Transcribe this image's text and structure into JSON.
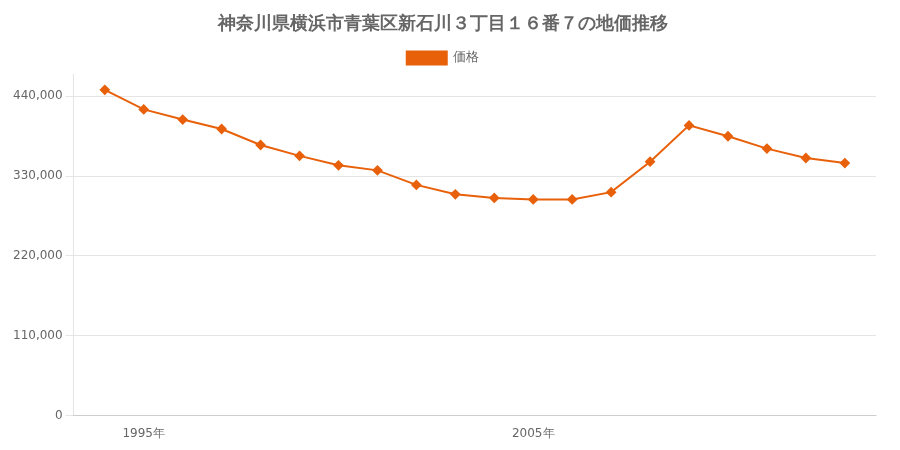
{
  "chart_data": {
    "type": "line",
    "title": "神奈川県横浜市青葉区新石川３丁目１６番７の地価推移",
    "x": [
      1994,
      1995,
      1996,
      1997,
      1998,
      1999,
      2000,
      2001,
      2002,
      2003,
      2004,
      2005,
      2006,
      2007,
      2008,
      2009,
      2010,
      2011,
      2012,
      2013
    ],
    "series": [
      {
        "name": "価格",
        "color": "#e8610a",
        "marker": "diamond",
        "values": [
          449000,
          422000,
          408000,
          395000,
          373000,
          358000,
          345000,
          338000,
          318000,
          305000,
          300000,
          298000,
          298000,
          308000,
          350000,
          400000,
          385000,
          368000,
          355000,
          348000
        ]
      }
    ],
    "xlim": [
      1993.2,
      2013.8
    ],
    "xticks": [
      {
        "value": 1995,
        "label": "1995年"
      },
      {
        "value": 2005,
        "label": "2005年"
      }
    ],
    "ylim": [
      0,
      470000
    ],
    "yticks": [
      0,
      {
        "value": 110000,
        "label": "110,000"
      },
      {
        "value": 220000,
        "label": "220,000"
      },
      {
        "value": 330000,
        "label": "330,000"
      },
      {
        "value": 440000,
        "label": "440,000"
      }
    ],
    "grid": true,
    "legend": "top"
  }
}
